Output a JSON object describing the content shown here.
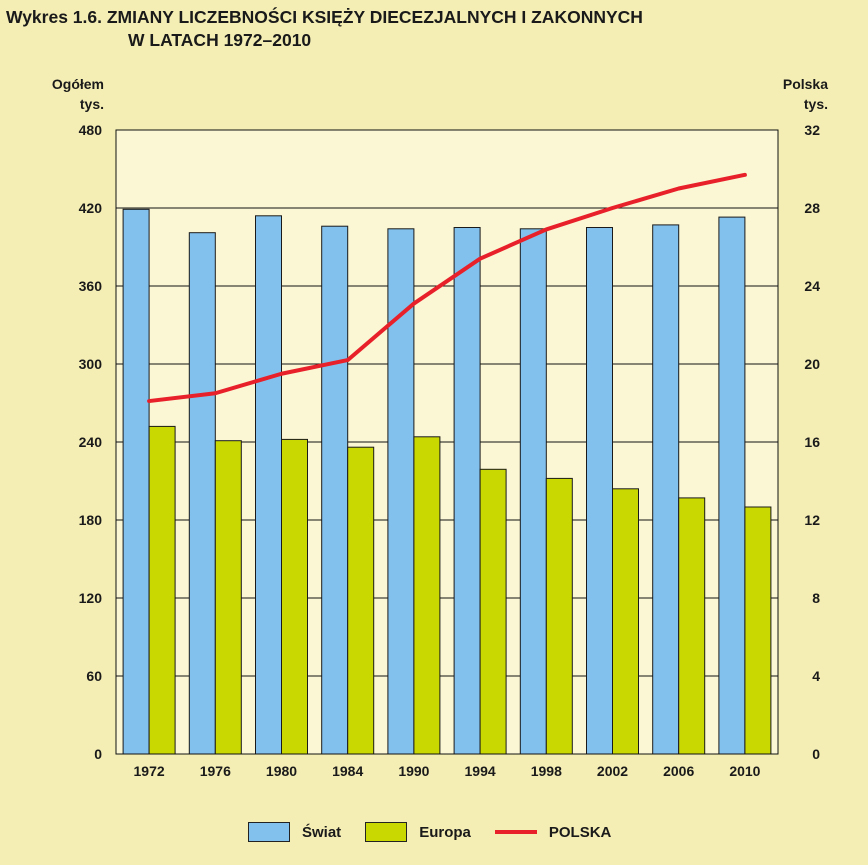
{
  "title": {
    "line1": "Wykres 1.6. ZMIANY LICZEBNOŚCI KSIĘŻY DIECEZJALNYCH I ZAKONNYCH",
    "line2": "W LATACH 1972–2010"
  },
  "left_axis_caption": [
    "Ogółem",
    "tys."
  ],
  "right_axis_caption": [
    "Polska",
    "tys."
  ],
  "colors": {
    "background": "#f4eeb4",
    "plot_background": "#fbf6d3",
    "swiat": "#82c1ee",
    "europa": "#c9d800",
    "polska": "#e8202a"
  },
  "chart_data": {
    "type": "bar",
    "categories": [
      "1972",
      "1976",
      "1980",
      "1984",
      "1990",
      "1994",
      "1998",
      "2002",
      "2006",
      "2010"
    ],
    "series": [
      {
        "name": "Świat",
        "type": "bar",
        "axis": "left",
        "values": [
          419,
          401,
          414,
          406,
          404,
          405,
          404,
          405,
          407,
          413
        ]
      },
      {
        "name": "Europa",
        "type": "bar",
        "axis": "left",
        "values": [
          252,
          241,
          242,
          236,
          244,
          219,
          212,
          204,
          197,
          190
        ]
      },
      {
        "name": "POLSKA",
        "type": "line",
        "axis": "right",
        "values": [
          18.1,
          18.5,
          19.5,
          20.2,
          23.1,
          25.4,
          26.9,
          28.0,
          29.0,
          29.7
        ]
      }
    ],
    "y_left": {
      "range": [
        0,
        480
      ],
      "ticks": [
        0,
        60,
        120,
        180,
        240,
        300,
        360,
        420,
        480
      ]
    },
    "y_right": {
      "range": [
        0,
        32
      ],
      "ticks": [
        0,
        4,
        8,
        12,
        16,
        20,
        24,
        28,
        32
      ]
    },
    "grid": true,
    "legend_position": "bottom"
  }
}
